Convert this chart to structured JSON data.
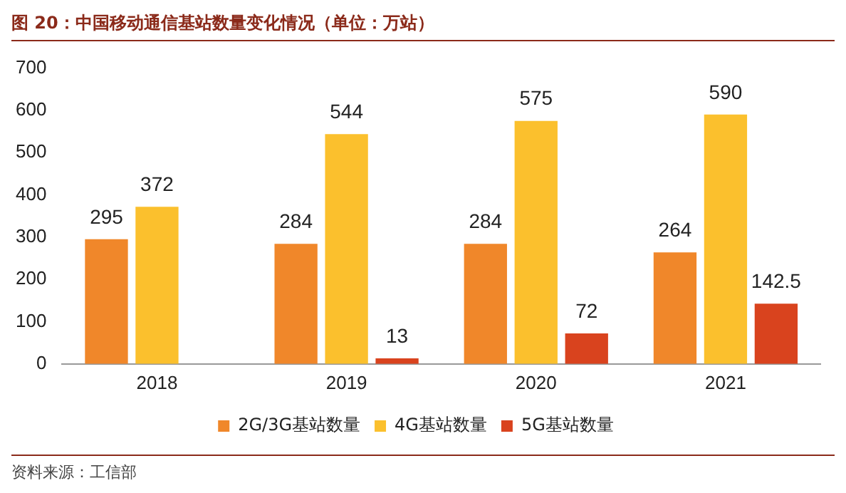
{
  "chart_data": {
    "type": "bar",
    "title": "图 20：中国移动通信基站数量变化情况（单位：万站）",
    "categories": [
      "2018",
      "2019",
      "2020",
      "2021"
    ],
    "series": [
      {
        "name": "2G/3G基站数量",
        "color": "#f0872a",
        "values": [
          295,
          284,
          284,
          264
        ]
      },
      {
        "name": "4G基站数量",
        "color": "#fbc02d",
        "values": [
          372,
          544,
          575,
          590
        ]
      },
      {
        "name": "5G基站数量",
        "color": "#d9431e",
        "values": [
          null,
          13,
          72,
          142.5
        ]
      }
    ],
    "ylim": [
      0,
      700
    ],
    "yticks": [
      0,
      100,
      200,
      300,
      400,
      500,
      600,
      700
    ],
    "grid": false,
    "legend": "bottom",
    "data_labels": true,
    "annotations": [
      "资料来源：工信部"
    ]
  }
}
